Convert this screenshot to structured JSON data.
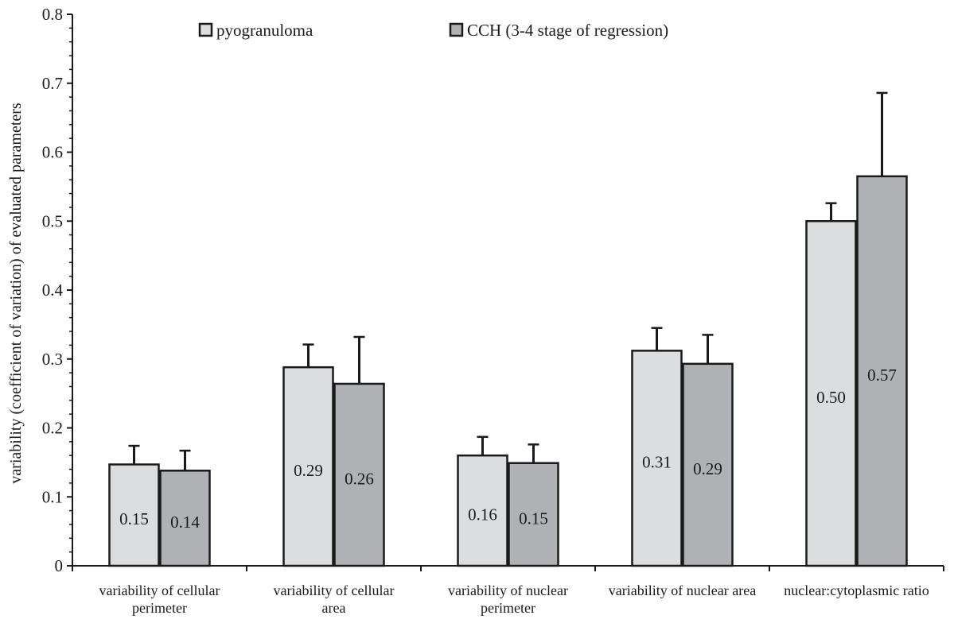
{
  "chart_data": {
    "type": "bar",
    "title": "",
    "xlabel": "",
    "ylabel": "variability (coefficient of variation) of evaluated parameters",
    "ylim": [
      0,
      0.8
    ],
    "yticks": [
      "0",
      "0.1",
      "0.2",
      "0.3",
      "0.4",
      "0.5",
      "0.6",
      "0.7",
      "0.8"
    ],
    "grid": false,
    "legend_position": "top",
    "categories": [
      [
        "variability of cellular",
        "perimeter"
      ],
      [
        "variability of cellular",
        "area"
      ],
      [
        "variability of nuclear",
        "perimeter"
      ],
      [
        "variability of nuclear area"
      ],
      [
        "nuclear:cytoplasmic ratio"
      ]
    ],
    "series": [
      {
        "name": "pyogranuloma",
        "color": "#dcdddf",
        "values": [
          0.147,
          0.288,
          0.16,
          0.312,
          0.5
        ],
        "errors": [
          0.027,
          0.033,
          0.027,
          0.033,
          0.026
        ],
        "labels": [
          "0.15",
          "0.29",
          "0.16",
          "0.31",
          "0.50"
        ]
      },
      {
        "name": "CCH (3-4 stage of regression)",
        "color": "#b0b1b4",
        "values": [
          0.138,
          0.264,
          0.149,
          0.293,
          0.565
        ],
        "errors": [
          0.029,
          0.068,
          0.027,
          0.042,
          0.121
        ],
        "labels": [
          "0.14",
          "0.26",
          "0.15",
          "0.29",
          "0.57"
        ]
      }
    ]
  }
}
